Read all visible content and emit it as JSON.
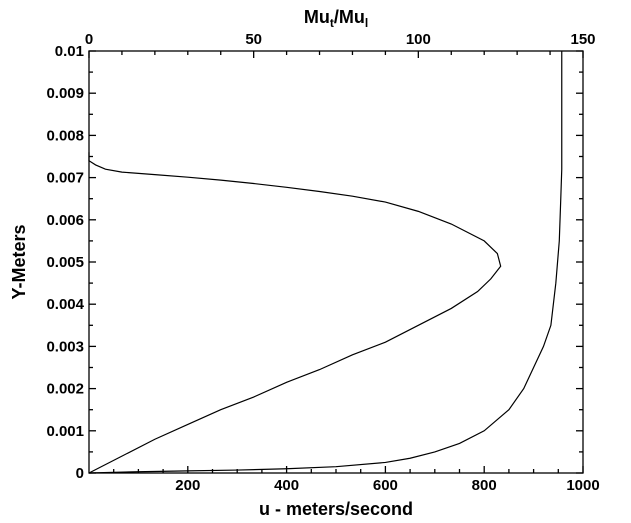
{
  "chart_data": {
    "type": "line",
    "xlabel": "u - meters/second",
    "ylabel": "Y-Meters",
    "x2label_main": "Mu",
    "x2label_sub1": "t",
    "x2label_slash": "/Mu",
    "x2label_sub2": "l",
    "xlim": [
      0,
      1000
    ],
    "ylim": [
      0,
      0.01
    ],
    "x2lim": [
      0,
      150
    ],
    "x_ticks": [
      200,
      400,
      600,
      800,
      1000
    ],
    "x_tick_labels": [
      "200",
      "400",
      "600",
      "800",
      "1000"
    ],
    "x2_ticks": [
      0,
      50,
      100,
      150
    ],
    "x2_tick_labels": [
      "0",
      "50",
      "100",
      "150"
    ],
    "y_ticks": [
      0,
      0.001,
      0.002,
      0.003,
      0.004,
      0.005,
      0.006,
      0.007,
      0.008,
      0.009,
      0.01
    ],
    "y_tick_labels": [
      "0",
      "0.001",
      "0.002",
      "0.003",
      "0.004",
      "0.005",
      "0.006",
      "0.007",
      "0.008",
      "0.009",
      "0.01"
    ],
    "grid": false,
    "series": [
      {
        "axis": "bottom",
        "x": [
          0,
          100,
          200,
          300,
          400,
          500,
          600,
          650,
          700,
          750,
          800,
          850,
          880,
          900,
          920,
          935,
          945,
          952,
          955,
          957,
          957
        ],
        "y": [
          0,
          3e-05,
          5e-05,
          7e-05,
          0.0001,
          0.00015,
          0.00025,
          0.00035,
          0.0005,
          0.0007,
          0.001,
          0.0015,
          0.002,
          0.0025,
          0.003,
          0.0035,
          0.0045,
          0.0055,
          0.0065,
          0.0072,
          0.01
        ]
      },
      {
        "axis": "top",
        "x": [
          0,
          10,
          20,
          30,
          40,
          50,
          60,
          70,
          80,
          90,
          100,
          110,
          118,
          122,
          125,
          124,
          120,
          110,
          100,
          90,
          80,
          70,
          60,
          50,
          40,
          30,
          20,
          10,
          5,
          2,
          0,
          0
        ],
        "y": [
          0,
          0.0004,
          0.0008,
          0.00115,
          0.0015,
          0.0018,
          0.00215,
          0.00245,
          0.0028,
          0.0031,
          0.0035,
          0.0039,
          0.0043,
          0.0046,
          0.0049,
          0.0052,
          0.0055,
          0.0059,
          0.0062,
          0.00642,
          0.00656,
          0.00667,
          0.00677,
          0.00686,
          0.00694,
          0.00701,
          0.00707,
          0.00713,
          0.0072,
          0.0073,
          0.0074,
          0.0076
        ]
      }
    ]
  }
}
